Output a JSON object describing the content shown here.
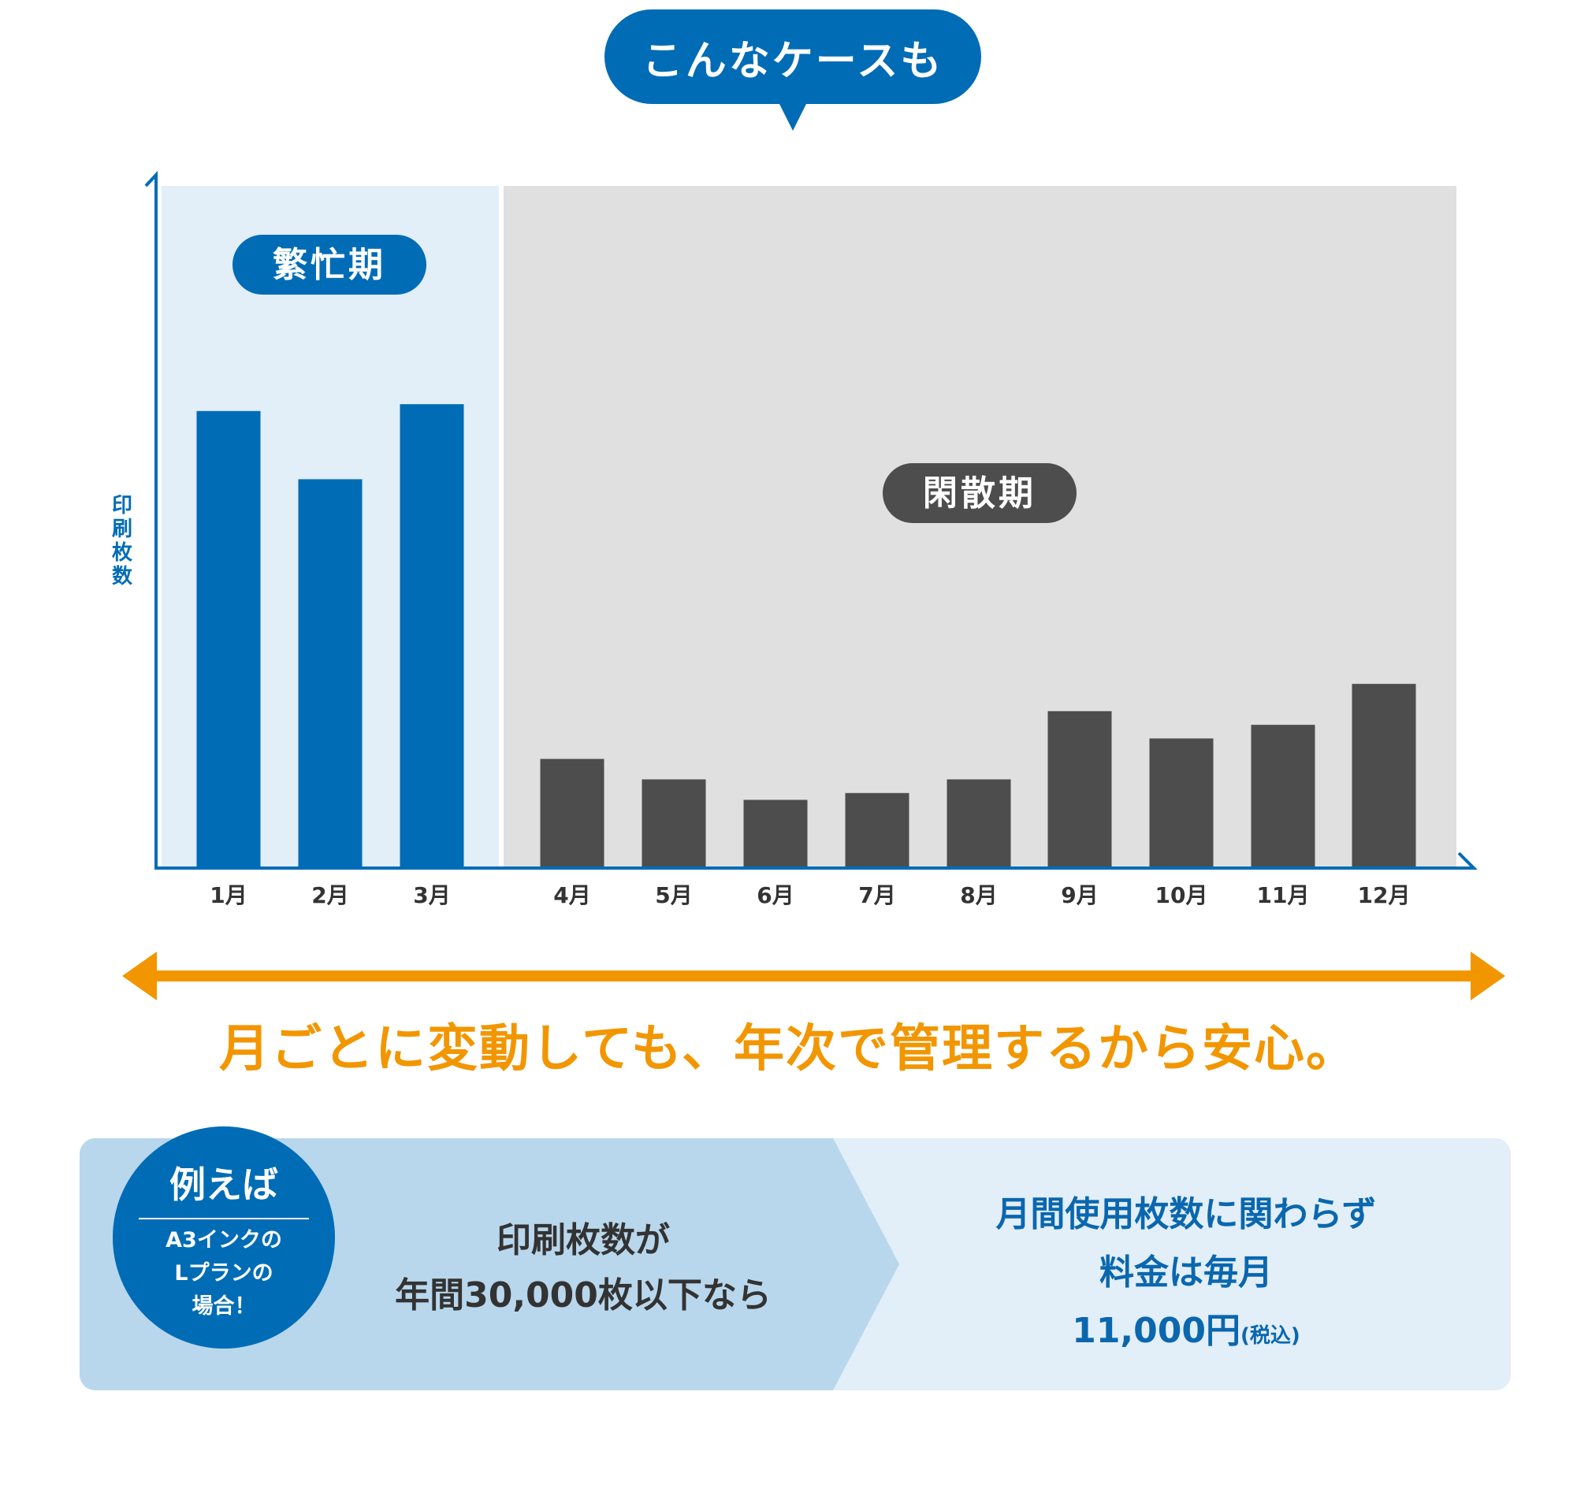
{
  "header": {
    "bubble_label": "こんなケースも"
  },
  "chart_data": {
    "type": "bar",
    "ylabel": "印刷枚数",
    "categories": [
      "1月",
      "2月",
      "3月",
      "4月",
      "5月",
      "6月",
      "7月",
      "8月",
      "9月",
      "10月",
      "11月",
      "12月"
    ],
    "values": [
      67,
      57,
      68,
      16,
      13,
      10,
      11,
      13,
      23,
      19,
      21,
      27
    ],
    "ylim": [
      0,
      100
    ],
    "grid": false,
    "periods": [
      {
        "label": "繁忙期",
        "months": [
          "1月",
          "2月",
          "3月"
        ],
        "color": "#006cb6",
        "background": "#e2eef8"
      },
      {
        "label": "閑散期",
        "months": [
          "4月",
          "5月",
          "6月",
          "7月",
          "8月",
          "9月",
          "10月",
          "11月",
          "12月"
        ],
        "color": "#4d4d4d",
        "background": "#e0e0e0"
      }
    ],
    "colors": {
      "axis": "#006cb6",
      "badge_busy": "#006cb6",
      "badge_slow": "#4d4d4d",
      "tick_text": "#333333"
    }
  },
  "message": {
    "text": "月ごとに変動しても、年次で管理するから安心。",
    "color": "#f29600"
  },
  "example": {
    "badge_title": "例えば",
    "badge_lines": [
      "A3インクの",
      "Lプランの",
      "場合！"
    ],
    "condition_lines": [
      "印刷枚数が",
      "年間30,000枚以下なら"
    ],
    "result_line1": "月間使用枚数に関わらず",
    "result_line2": "料金は毎月",
    "result_price": "11,000円",
    "result_tax": "(税込)",
    "colors": {
      "badge": "#006cb6",
      "chevron": "#b8d7ec",
      "panel": "#e2eef8",
      "result_text": "#0a67ae"
    }
  }
}
